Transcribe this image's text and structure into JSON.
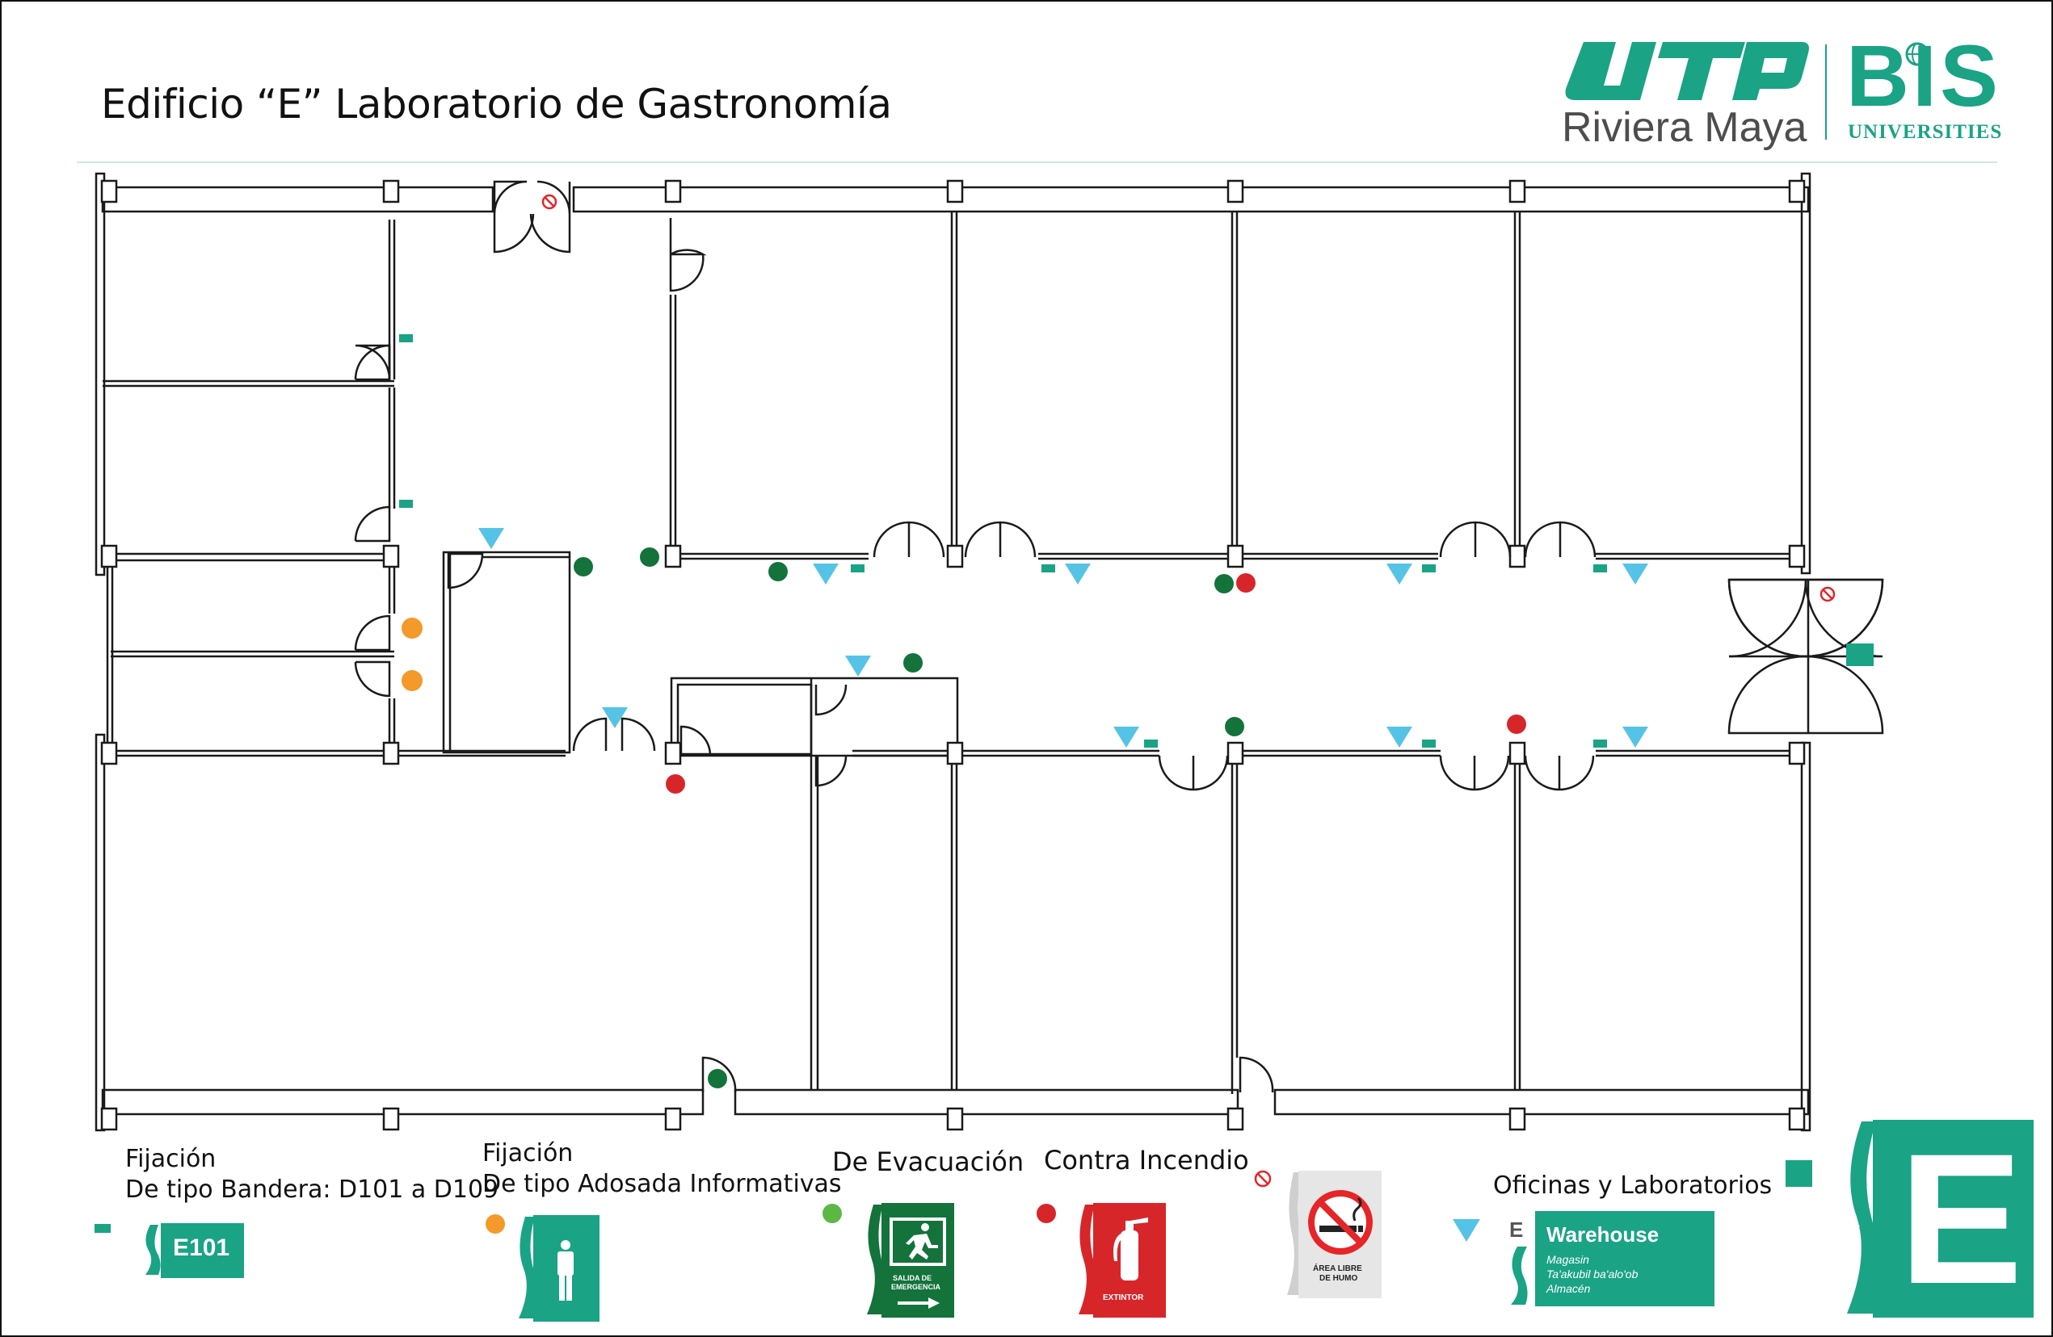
{
  "title": "Edificio “E” Laboratorio de Gastronomía",
  "logo": {
    "city": "Riviera Maya",
    "bis": "BIS",
    "bis_sub": "UNIVERSITIES"
  },
  "legend": {
    "bandera": {
      "line1": "Fijación",
      "line2": "De tipo Bandera: D101 a D109",
      "sample": "E101"
    },
    "adosada": {
      "line1": "Fijación",
      "line2": "De tipo Adosada Informativas"
    },
    "evacuacion": {
      "label": "De Evacuación",
      "sign_line1": "SALIDA DE",
      "sign_line2": "EMERGENCIA"
    },
    "incendio": {
      "label": "Contra Incendio",
      "sign": "EXTINTOR"
    },
    "humo": {
      "sign_line1": "ÁREA LIBRE",
      "sign_line2": "DE HUMO"
    },
    "oficinas": {
      "label": "Oficinas y Laboratorios",
      "letter": "E",
      "sign_title": "Warehouse",
      "sign_line1": "Magasin",
      "sign_line2": "Ta'akubil ba'alo'ob",
      "sign_line3": "Almacén"
    }
  },
  "building_letter": "E",
  "colors": {
    "brand_green": "#1aa385",
    "evacuation_green": "#13733b",
    "fire_red": "#d7262a",
    "informative_orange": "#f39a2b",
    "office_blue": "#55c3e6",
    "no_smoking_red": "#e52528"
  }
}
